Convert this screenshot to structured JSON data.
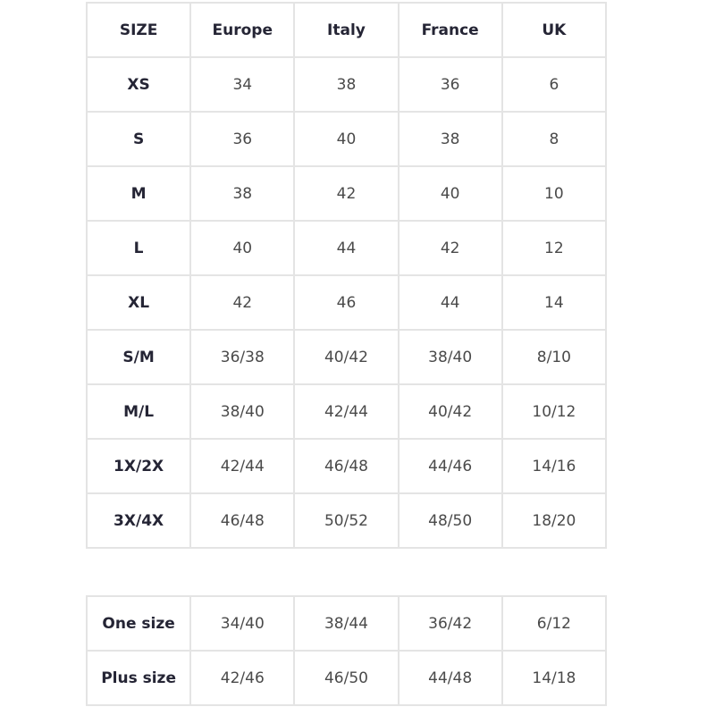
{
  "main_table": {
    "header": [
      "SIZE",
      "Europe",
      "Italy",
      "France",
      "UK"
    ],
    "rows": [
      [
        "XS",
        "34",
        "38",
        "36",
        "6"
      ],
      [
        "S",
        "36",
        "40",
        "38",
        "8"
      ],
      [
        "M",
        "38",
        "42",
        "40",
        "10"
      ],
      [
        "L",
        "40",
        "44",
        "42",
        "12"
      ],
      [
        "XL",
        "42",
        "46",
        "44",
        "14"
      ],
      [
        "S/M",
        "36/38",
        "40/42",
        "38/40",
        "8/10"
      ],
      [
        "M/L",
        "38/40",
        "42/44",
        "40/42",
        "10/12"
      ],
      [
        "1X/2X",
        "42/44",
        "46/48",
        "44/46",
        "14/16"
      ],
      [
        "3X/4X",
        "46/48",
        "50/52",
        "48/50",
        "18/20"
      ]
    ]
  },
  "extra_table": {
    "rows": [
      [
        "One size",
        "34/40",
        "38/44",
        "36/42",
        "6/12"
      ],
      [
        "Plus size",
        "42/46",
        "46/50",
        "44/48",
        "14/18"
      ]
    ]
  }
}
